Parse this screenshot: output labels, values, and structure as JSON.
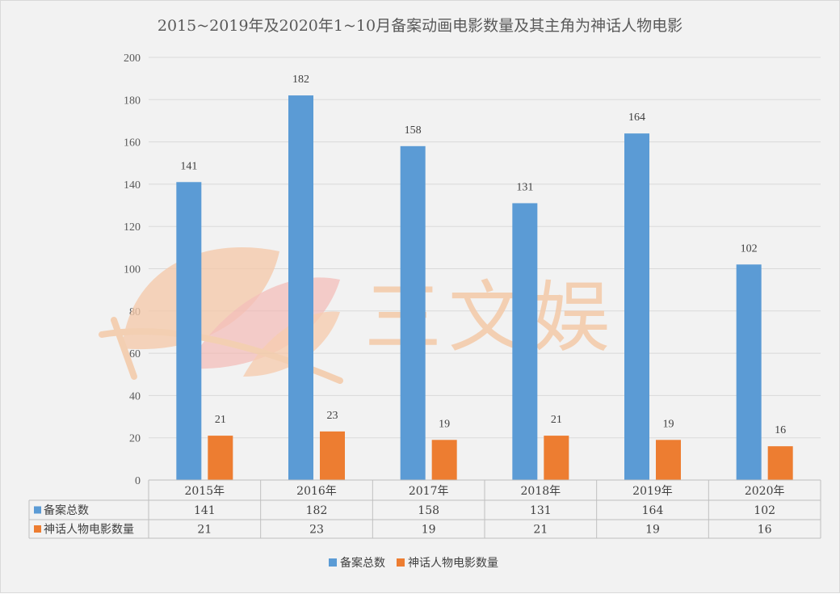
{
  "chart_data": {
    "type": "bar",
    "title": "2015~2019年及2020年1~10月备案动画电影数量及其主角为神话人物电影",
    "categories": [
      "2015年",
      "2016年",
      "2017年",
      "2018年",
      "2019年",
      "2020年"
    ],
    "series": [
      {
        "name": "备案总数",
        "values": [
          141,
          182,
          158,
          131,
          164,
          102
        ],
        "color": "#5b9bd5"
      },
      {
        "name": "神话人物电影数量",
        "values": [
          21,
          23,
          19,
          21,
          19,
          16
        ],
        "color": "#ed7d31"
      }
    ],
    "ylim": [
      0,
      200
    ],
    "yticks": [
      0,
      20,
      40,
      60,
      80,
      100,
      120,
      140,
      160,
      180,
      200
    ],
    "grid": true,
    "legend_position": "bottom",
    "data_table": true
  },
  "watermark": {
    "text": "三文娱",
    "icon": "leaf-logo-icon"
  }
}
